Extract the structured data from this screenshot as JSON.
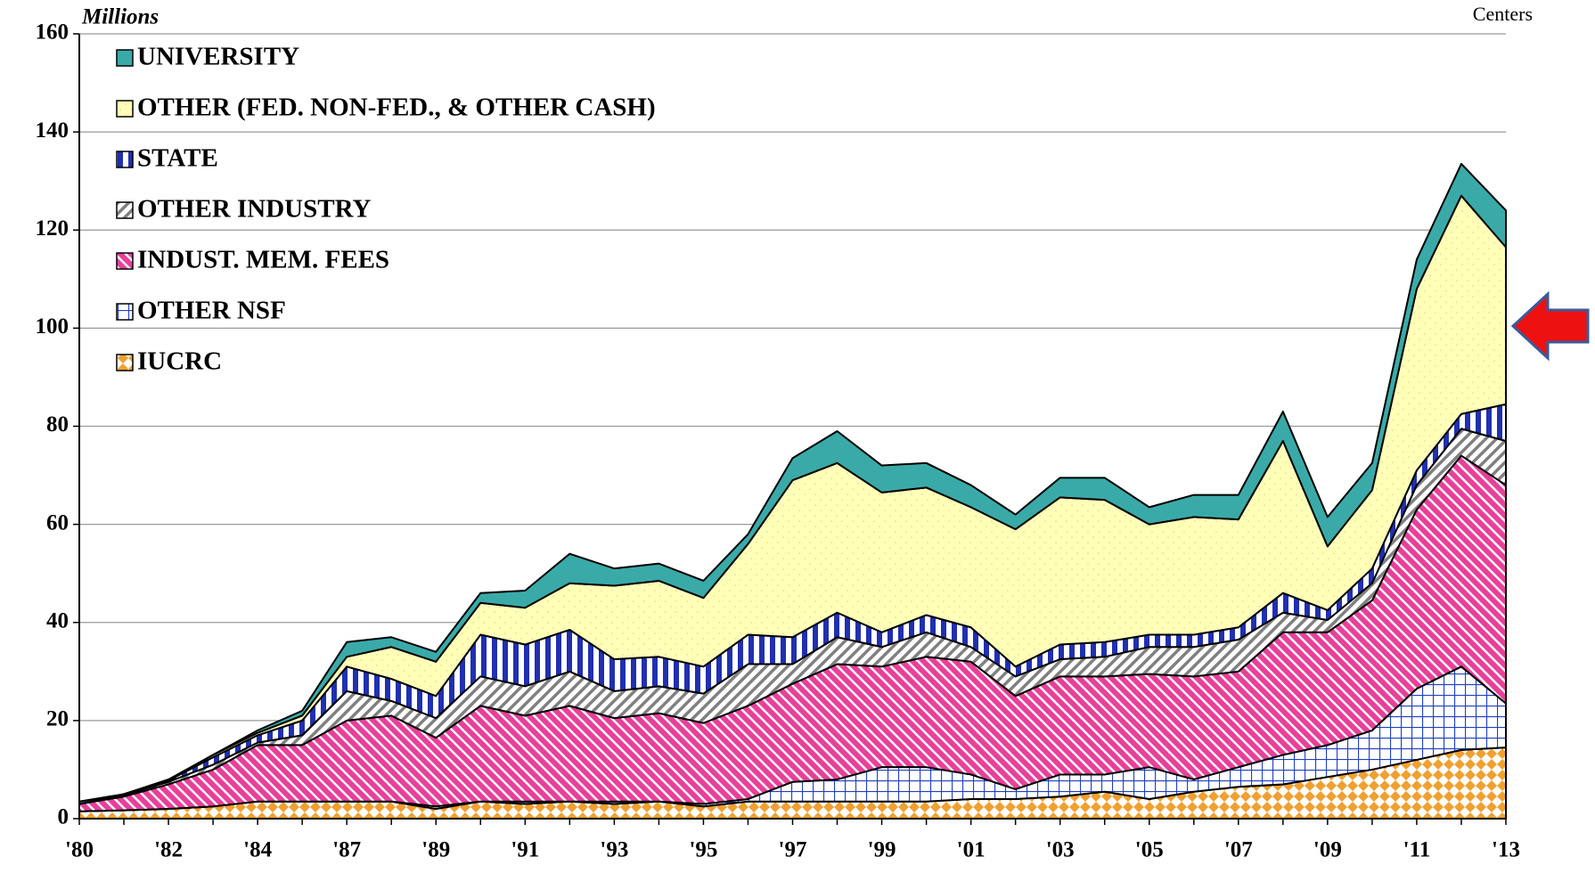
{
  "chart_data": {
    "type": "stacked_area",
    "y_axis_label": "Millions",
    "corner_note": "Centers",
    "categories": [
      "'80",
      null,
      "'82",
      null,
      "'84",
      null,
      "'87",
      null,
      "'89",
      null,
      "'91",
      null,
      "'93",
      null,
      "'95",
      null,
      "'97",
      null,
      "'99",
      null,
      "'01",
      null,
      "'03",
      null,
      "'05",
      null,
      "'07",
      null,
      "'09",
      null,
      "'11",
      null,
      "'13"
    ],
    "ylim": [
      0,
      160
    ],
    "yticks": [
      0,
      20,
      40,
      60,
      80,
      100,
      120,
      140,
      160
    ],
    "grid": true,
    "legend": "top-left",
    "series": [
      {
        "name": "IUCRC",
        "color": "#f0a030",
        "values": [
          1.5,
          1.7,
          2,
          2.5,
          3.5,
          3.5,
          3.5,
          3.5,
          2,
          3.5,
          3,
          3.5,
          3,
          3.5,
          2.5,
          3.5,
          3.5,
          3.5,
          3.5,
          3.5,
          4,
          4,
          4.5,
          5.5,
          4,
          5.5,
          6.5,
          7,
          8.5,
          10,
          12,
          14,
          14.5
        ]
      },
      {
        "name": "OTHER NSF",
        "color": "#2040c0",
        "values": [
          0,
          0,
          0,
          0,
          0,
          0,
          0,
          0,
          0.5,
          0,
          0.5,
          0,
          0.5,
          0,
          0.5,
          0.5,
          4,
          4.5,
          7,
          7,
          5,
          2,
          4.5,
          3.5,
          6.5,
          2.5,
          4,
          6,
          6.5,
          8,
          14.5,
          17,
          9
        ]
      },
      {
        "name": "INDUST. MEM. FEES",
        "color": "#e8409a",
        "values": [
          1.5,
          2.8,
          5,
          7.5,
          11.5,
          11.5,
          16.5,
          17.5,
          14,
          19.5,
          17.5,
          19.5,
          17,
          18,
          16.5,
          19,
          20,
          23.5,
          20.5,
          22.5,
          23,
          19,
          20,
          20,
          19,
          21,
          19.5,
          25,
          23,
          26.5,
          36.5,
          43,
          44.5
        ]
      },
      {
        "name": "OTHER INDUSTRY",
        "color": "#808080",
        "values": [
          0,
          0.3,
          0.5,
          1,
          0.5,
          2,
          6,
          3,
          4,
          6,
          6,
          7,
          5.5,
          5.5,
          6,
          8.5,
          4,
          5.5,
          4,
          5,
          3,
          4,
          3.5,
          4,
          5.5,
          6,
          6.5,
          4,
          2.5,
          3.5,
          5,
          5.5,
          9
        ]
      },
      {
        "name": "STATE",
        "color": "#2030b0",
        "values": [
          0,
          0.2,
          0.3,
          1.5,
          1.5,
          3,
          5,
          4.5,
          4.5,
          8.5,
          8.5,
          8.5,
          6.5,
          6,
          5.5,
          6,
          5.5,
          5,
          3,
          3.5,
          4,
          2,
          3,
          3,
          2.5,
          2.5,
          2.5,
          4,
          2,
          3,
          3,
          3,
          7.5
        ]
      },
      {
        "name": "OTHER (FED. NON-FED., & OTHER CASH)",
        "color": "#ffffb8",
        "values": [
          0,
          0,
          0,
          0.5,
          0.5,
          1,
          2,
          6.5,
          7,
          6.5,
          7.5,
          9.5,
          15,
          15.5,
          14,
          18.5,
          32,
          30.5,
          28.5,
          26,
          24.5,
          28,
          30,
          29,
          22.5,
          24,
          22,
          31,
          13,
          16,
          37,
          44.5,
          32
        ]
      },
      {
        "name": "UNIVERSITY",
        "color": "#3aaaa8",
        "values": [
          0.5,
          0,
          0.2,
          0,
          0.5,
          1,
          3,
          2,
          2,
          2,
          3.5,
          6,
          3.5,
          3.5,
          3.5,
          2,
          4.5,
          6.5,
          5.5,
          5,
          4.5,
          3,
          4,
          4.5,
          3.5,
          4.5,
          5,
          6,
          6,
          5.5,
          6,
          6.5,
          7.5
        ]
      }
    ]
  }
}
